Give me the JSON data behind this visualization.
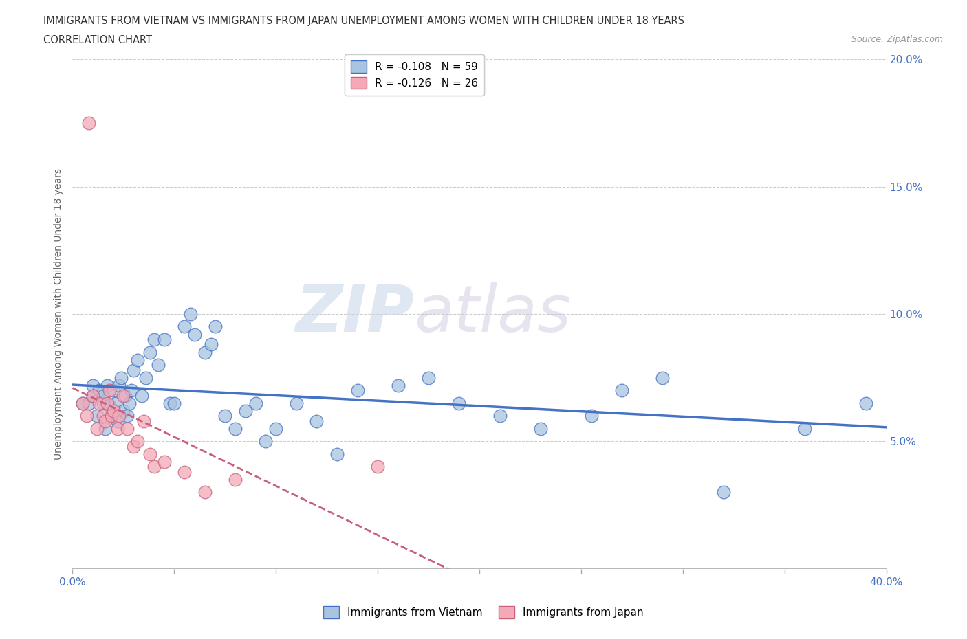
{
  "title_line1": "IMMIGRANTS FROM VIETNAM VS IMMIGRANTS FROM JAPAN UNEMPLOYMENT AMONG WOMEN WITH CHILDREN UNDER 18 YEARS",
  "title_line2": "CORRELATION CHART",
  "source": "Source: ZipAtlas.com",
  "ylabel": "Unemployment Among Women with Children Under 18 years",
  "xlim": [
    0.0,
    0.4
  ],
  "ylim": [
    0.0,
    0.2
  ],
  "xticks": [
    0.0,
    0.05,
    0.1,
    0.15,
    0.2,
    0.25,
    0.3,
    0.35,
    0.4
  ],
  "xticklabels": [
    "0.0%",
    "",
    "",
    "",
    "",
    "",
    "",
    "",
    "40.0%"
  ],
  "yticks": [
    0.0,
    0.05,
    0.1,
    0.15,
    0.2
  ],
  "yticklabels": [
    "",
    "5.0%",
    "10.0%",
    "15.0%",
    "20.0%"
  ],
  "r_vietnam": -0.108,
  "n_vietnam": 59,
  "r_japan": -0.126,
  "n_japan": 26,
  "color_vietnam": "#a8c4e0",
  "color_japan": "#f4a8b8",
  "line_color_vietnam": "#4472c4",
  "line_color_japan": "#c9607a",
  "watermark_zip": "ZIP",
  "watermark_atlas": "atlas",
  "vietnam_x": [
    0.005,
    0.008,
    0.01,
    0.01,
    0.012,
    0.013,
    0.015,
    0.015,
    0.016,
    0.017,
    0.018,
    0.019,
    0.02,
    0.021,
    0.022,
    0.023,
    0.024,
    0.025,
    0.026,
    0.027,
    0.028,
    0.029,
    0.03,
    0.032,
    0.034,
    0.036,
    0.038,
    0.04,
    0.042,
    0.045,
    0.048,
    0.05,
    0.055,
    0.058,
    0.06,
    0.065,
    0.068,
    0.07,
    0.075,
    0.08,
    0.085,
    0.09,
    0.095,
    0.1,
    0.11,
    0.12,
    0.13,
    0.14,
    0.16,
    0.175,
    0.19,
    0.21,
    0.23,
    0.255,
    0.27,
    0.29,
    0.32,
    0.36,
    0.39
  ],
  "vietnam_y": [
    0.065,
    0.065,
    0.068,
    0.072,
    0.06,
    0.07,
    0.065,
    0.068,
    0.055,
    0.072,
    0.064,
    0.06,
    0.07,
    0.065,
    0.058,
    0.072,
    0.075,
    0.062,
    0.068,
    0.06,
    0.065,
    0.07,
    0.078,
    0.082,
    0.068,
    0.075,
    0.085,
    0.09,
    0.08,
    0.09,
    0.065,
    0.065,
    0.095,
    0.1,
    0.092,
    0.085,
    0.088,
    0.095,
    0.06,
    0.055,
    0.062,
    0.065,
    0.05,
    0.055,
    0.065,
    0.058,
    0.045,
    0.07,
    0.072,
    0.075,
    0.065,
    0.06,
    0.055,
    0.06,
    0.07,
    0.075,
    0.03,
    0.055,
    0.065
  ],
  "japan_x": [
    0.005,
    0.007,
    0.008,
    0.01,
    0.012,
    0.013,
    0.015,
    0.016,
    0.017,
    0.018,
    0.019,
    0.02,
    0.022,
    0.023,
    0.025,
    0.027,
    0.03,
    0.032,
    0.035,
    0.038,
    0.04,
    0.045,
    0.055,
    0.065,
    0.08,
    0.15
  ],
  "japan_y": [
    0.065,
    0.06,
    0.175,
    0.068,
    0.055,
    0.065,
    0.06,
    0.058,
    0.065,
    0.07,
    0.06,
    0.062,
    0.055,
    0.06,
    0.068,
    0.055,
    0.048,
    0.05,
    0.058,
    0.045,
    0.04,
    0.042,
    0.038,
    0.03,
    0.035,
    0.04
  ]
}
